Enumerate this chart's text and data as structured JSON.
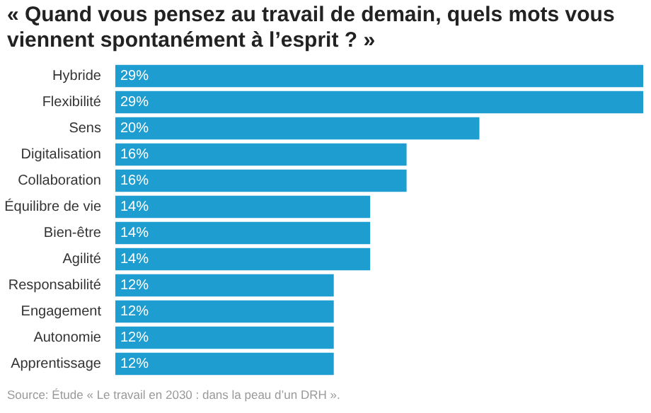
{
  "chart_data": {
    "type": "bar",
    "orientation": "horizontal",
    "title": "« Quand vous pensez au travail de demain, quels mots vous viennent spontanément à l’esprit ? »",
    "categories": [
      "Hybride",
      "Flexibilité",
      "Sens",
      "Digitalisation",
      "Collaboration",
      "Équilibre de vie",
      "Bien-être",
      "Agilité",
      "Responsabilité",
      "Engagement",
      "Autonomie",
      "Apprentissage"
    ],
    "values": [
      29,
      29,
      20,
      16,
      16,
      14,
      14,
      14,
      12,
      12,
      12,
      12
    ],
    "value_labels": [
      "29%",
      "29%",
      "20%",
      "16%",
      "16%",
      "14%",
      "14%",
      "14%",
      "12%",
      "12%",
      "12%",
      "12%"
    ],
    "color": "#1d9dd0",
    "grid": false,
    "annotations": [
      "Source: Étude « Le travail en 2030 : dans la peau d’un DRH »."
    ]
  }
}
